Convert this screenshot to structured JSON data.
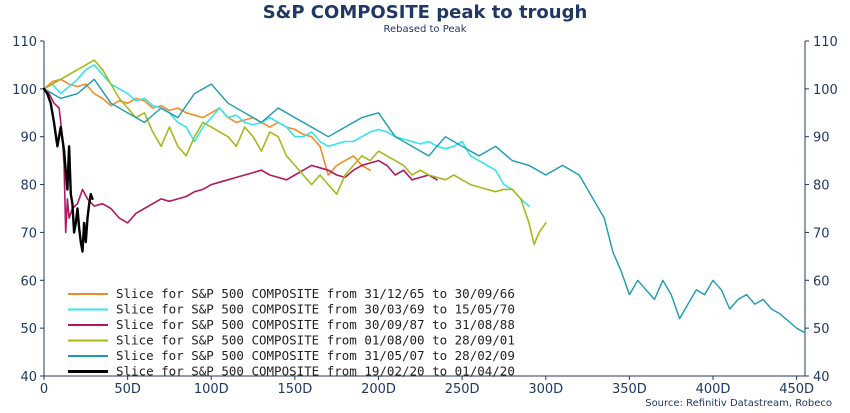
{
  "chart_data": {
    "type": "line",
    "title": "S&P COMPOSITE peak to trough",
    "subtitle": "Rebased to Peak",
    "source": "Source: Refinitiv Datastream, Robeco",
    "xlim": [
      0,
      455
    ],
    "ylim": [
      40,
      110
    ],
    "x_ticks": [
      0,
      50,
      100,
      150,
      200,
      250,
      300,
      350,
      400,
      450
    ],
    "x_tick_labels": [
      "0",
      "50D",
      "100D",
      "150D",
      "200D",
      "250D",
      "300D",
      "350D",
      "400D",
      "450D"
    ],
    "y_ticks": [
      40,
      50,
      60,
      70,
      80,
      90,
      100,
      110
    ],
    "y_tick_labels": [
      "40",
      "50",
      "60",
      "70",
      "80",
      "90",
      "100",
      "110"
    ],
    "legend_position": "bottom-left",
    "series": [
      {
        "name": "Slice for S&P 500 COMPOSITE from 31/12/65 to 30/09/66",
        "color": "#f28c28",
        "width": 1.6,
        "x": [
          0,
          5,
          10,
          15,
          20,
          25,
          30,
          35,
          40,
          45,
          50,
          55,
          60,
          65,
          70,
          75,
          80,
          85,
          90,
          95,
          100,
          105,
          110,
          115,
          120,
          125,
          130,
          135,
          140,
          145,
          150,
          155,
          160,
          165,
          170,
          175,
          180,
          185,
          190,
          195
        ],
        "y": [
          100,
          101.5,
          102,
          101,
          100.5,
          101,
          99,
          98,
          96.5,
          97.5,
          97,
          98,
          97.5,
          96,
          96.5,
          95.5,
          96,
          95,
          94.5,
          94,
          95,
          96,
          94,
          93,
          93.5,
          94,
          93,
          92,
          93,
          92,
          91.5,
          90.5,
          90,
          88,
          82,
          84,
          85,
          86,
          84,
          83
        ]
      },
      {
        "name": "Slice for S&P 500 COMPOSITE from 30/03/69 to 15/05/70",
        "color": "#33e6ec",
        "width": 1.6,
        "x": [
          0,
          5,
          10,
          15,
          20,
          25,
          30,
          35,
          40,
          45,
          50,
          55,
          60,
          65,
          70,
          75,
          80,
          85,
          90,
          95,
          100,
          105,
          110,
          115,
          120,
          125,
          130,
          135,
          140,
          145,
          150,
          155,
          160,
          165,
          170,
          175,
          180,
          185,
          190,
          195,
          200,
          205,
          210,
          215,
          220,
          225,
          230,
          235,
          240,
          245,
          250,
          255,
          260,
          265,
          270,
          275,
          280,
          285,
          290
        ],
        "y": [
          100,
          101,
          99,
          100.5,
          102,
          104,
          105,
          103,
          101,
          100,
          99,
          97.5,
          98,
          96.5,
          96,
          95,
          93,
          92,
          89,
          92,
          94,
          96,
          94,
          94.5,
          93,
          92.5,
          93,
          94,
          93,
          92,
          90,
          90,
          91,
          89,
          88,
          88.5,
          89,
          89,
          90,
          91,
          91.5,
          91,
          90,
          89.5,
          89,
          88.5,
          89,
          88,
          87.5,
          88,
          89,
          86,
          85,
          84,
          83,
          80,
          79,
          77,
          75.5
        ]
      },
      {
        "name": "Slice for S&P 500 COMPOSITE from 30/09/87 to 31/08/88",
        "color": "#b0185f",
        "width": 1.6,
        "x": [
          0,
          3,
          6,
          9,
          11,
          12,
          13,
          14,
          15,
          17,
          20,
          23,
          26,
          30,
          35,
          40,
          45,
          50,
          55,
          60,
          65,
          70,
          75,
          80,
          85,
          90,
          95,
          100,
          105,
          110,
          115,
          120,
          125,
          130,
          135,
          140,
          145,
          150,
          155,
          160,
          165,
          170,
          175,
          180,
          185,
          190,
          195,
          200,
          205,
          210,
          215,
          220,
          225,
          230,
          235
        ],
        "y": [
          100,
          99,
          97,
          96,
          90,
          84,
          70,
          77,
          73,
          75,
          76,
          79,
          77,
          75.5,
          76,
          75,
          73,
          72,
          74,
          75,
          76,
          77,
          76.5,
          77,
          77.5,
          78.5,
          79,
          80,
          80.5,
          81,
          81.5,
          82,
          82.5,
          83,
          82,
          81.5,
          81,
          82,
          83,
          84,
          83.5,
          83,
          82,
          81.5,
          83,
          84,
          84.5,
          85,
          84,
          82,
          83,
          81,
          81.5,
          82,
          81
        ]
      },
      {
        "name": "Slice for S&P 500 COMPOSITE from 01/08/00 to 28/09/01",
        "color": "#a8b81c",
        "width": 1.6,
        "x": [
          0,
          5,
          10,
          15,
          20,
          25,
          30,
          35,
          40,
          45,
          50,
          55,
          60,
          65,
          70,
          75,
          80,
          85,
          90,
          95,
          100,
          105,
          110,
          115,
          120,
          125,
          130,
          135,
          140,
          145,
          150,
          155,
          160,
          165,
          170,
          175,
          180,
          185,
          190,
          195,
          200,
          205,
          210,
          215,
          220,
          225,
          230,
          235,
          240,
          245,
          250,
          255,
          260,
          265,
          270,
          275,
          280,
          285,
          290,
          293,
          296,
          300
        ],
        "y": [
          100,
          101,
          102,
          103,
          104,
          105,
          106,
          104,
          101,
          98,
          96,
          94,
          95,
          91,
          88,
          92,
          88,
          86,
          90,
          93,
          92,
          91,
          90,
          88,
          92,
          90,
          87,
          91,
          90,
          86,
          84,
          82,
          80,
          82,
          80,
          78,
          82,
          84,
          86,
          85,
          87,
          86,
          85,
          84,
          82,
          83,
          82,
          81.5,
          81,
          82,
          81,
          80,
          79.5,
          79,
          78.5,
          79,
          79,
          77,
          72,
          67.5,
          70,
          72
        ]
      },
      {
        "name": "Slice for S&P 500 COMPOSITE from 31/05/07 to 28/02/09",
        "color": "#1a9bb0",
        "width": 1.4,
        "x": [
          0,
          10,
          20,
          30,
          40,
          50,
          60,
          70,
          80,
          90,
          100,
          110,
          120,
          130,
          140,
          150,
          160,
          170,
          180,
          190,
          200,
          210,
          220,
          230,
          240,
          250,
          260,
          270,
          280,
          290,
          300,
          310,
          320,
          330,
          335,
          340,
          345,
          350,
          355,
          360,
          365,
          370,
          375,
          380,
          385,
          390,
          395,
          400,
          405,
          410,
          415,
          420,
          425,
          430,
          435,
          440,
          445,
          450,
          455
        ],
        "y": [
          100,
          98,
          99,
          102,
          97,
          95,
          93,
          96,
          94,
          99,
          101,
          97,
          95,
          93,
          96,
          94,
          92,
          90,
          92,
          94,
          95,
          90,
          88,
          86,
          90,
          88,
          86,
          88,
          85,
          84,
          82,
          84,
          82,
          76,
          73,
          66,
          62,
          57,
          60,
          58,
          56,
          60,
          57,
          52,
          55,
          58,
          57,
          60,
          58,
          54,
          56,
          57,
          55,
          56,
          54,
          53,
          51.5,
          50,
          49
        ]
      },
      {
        "name": "Slice for S&P 500 COMPOSITE from 19/02/20 to 01/04/20",
        "color": "#000000",
        "width": 2.4,
        "x": [
          0,
          2,
          4,
          6,
          8,
          10,
          12,
          13,
          14,
          15,
          16,
          17,
          18,
          19,
          20,
          21,
          22,
          23,
          24,
          25,
          26,
          27,
          28,
          29
        ],
        "y": [
          100,
          99,
          97,
          93,
          88,
          92,
          87,
          83,
          79,
          88,
          78,
          76,
          70,
          72,
          75,
          71,
          68,
          66,
          72,
          68,
          73,
          76,
          78,
          77
        ]
      }
    ]
  }
}
